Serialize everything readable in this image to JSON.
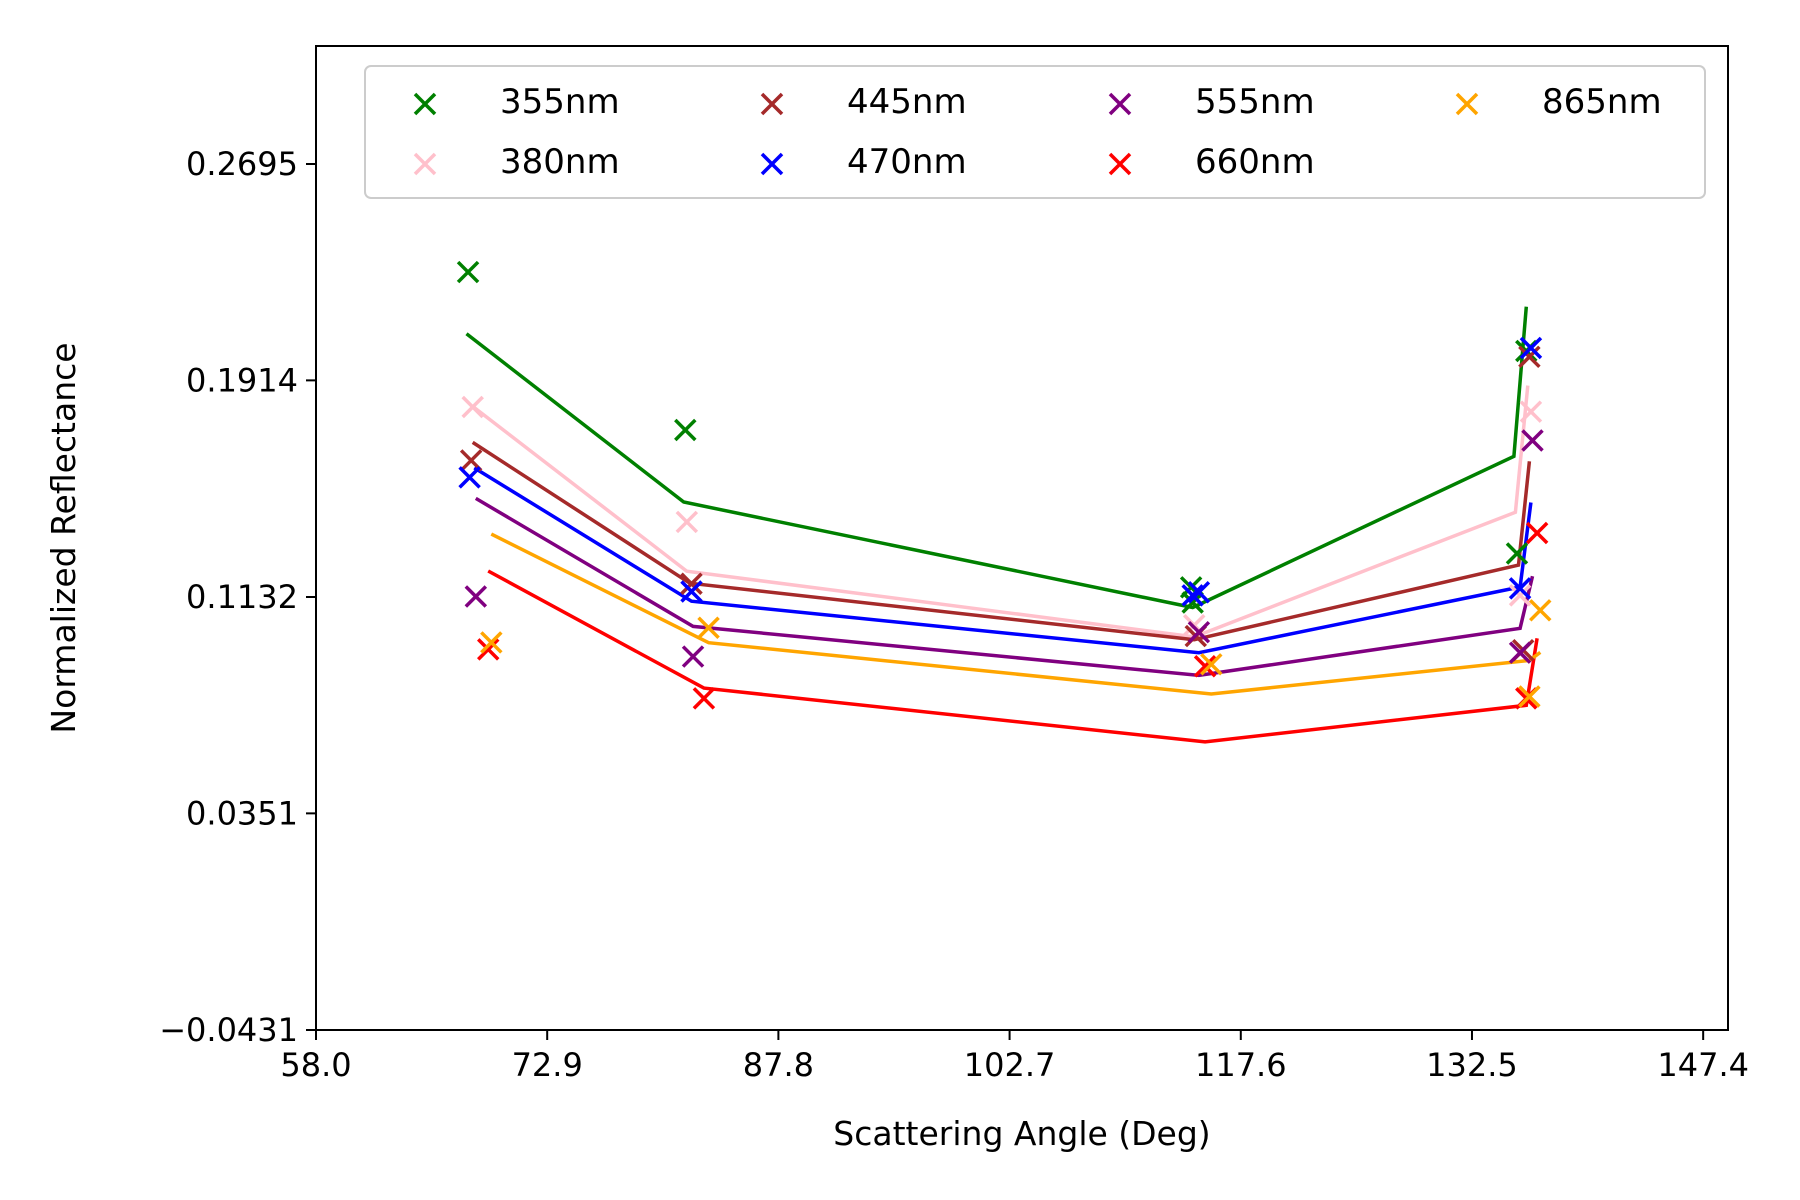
{
  "chart_data": {
    "type": "scatter",
    "title": "",
    "xlabel": "Scattering Angle (Deg)",
    "ylabel": "Normalized Reflectance",
    "xlim": [
      58.0,
      149.0
    ],
    "ylim": [
      -0.0431,
      0.3121
    ],
    "x_ticks": [
      "58.0",
      "72.9",
      "87.8",
      "102.7",
      "117.6",
      "132.5",
      "147.4"
    ],
    "y_ticks": [
      "−0.0431",
      "0.0351",
      "0.1132",
      "0.1914",
      "0.2695"
    ],
    "grid": false,
    "legend_position": "top",
    "series": [
      {
        "name": "355nm",
        "color": "#008000",
        "points": [
          [
            67.8,
            0.2305
          ],
          [
            81.8,
            0.1735
          ],
          [
            114.4,
            0.1167
          ],
          [
            114.5,
            0.1112
          ],
          [
            135.4,
            0.1289
          ],
          [
            136.0,
            0.202
          ]
        ],
        "line": [
          [
            67.7,
            0.2082
          ],
          [
            81.7,
            0.1475
          ],
          [
            114.5,
            0.1094
          ],
          [
            135.2,
            0.164
          ],
          [
            136.0,
            0.218
          ]
        ]
      },
      {
        "name": "380nm",
        "color": "#ffc0cb",
        "points": [
          [
            68.1,
            0.1818
          ],
          [
            81.9,
            0.1403
          ],
          [
            114.6,
            0.103
          ],
          [
            135.6,
            0.1138
          ],
          [
            136.3,
            0.1801
          ]
        ],
        "line": [
          [
            68.1,
            0.182
          ],
          [
            81.9,
            0.1225
          ],
          [
            114.6,
            0.0988
          ],
          [
            135.3,
            0.1438
          ],
          [
            136.1,
            0.1895
          ]
        ]
      },
      {
        "name": "445nm",
        "color": "#a52a2a",
        "points": [
          [
            68.0,
            0.1625
          ],
          [
            82.2,
            0.118
          ],
          [
            114.7,
            0.0991
          ],
          [
            136.2,
            0.1999
          ],
          [
            135.8,
            0.094
          ]
        ],
        "line": [
          [
            68.1,
            0.169
          ],
          [
            82.1,
            0.1182
          ],
          [
            114.6,
            0.0978
          ],
          [
            135.5,
            0.1247
          ],
          [
            136.2,
            0.1622
          ]
        ]
      },
      {
        "name": "470nm",
        "color": "#0000ff",
        "points": [
          [
            67.9,
            0.1564
          ],
          [
            82.2,
            0.1152
          ],
          [
            114.5,
            0.1138
          ],
          [
            114.9,
            0.1149
          ],
          [
            135.6,
            0.1163
          ],
          [
            136.3,
            0.2031
          ]
        ],
        "line": [
          [
            68.2,
            0.1598
          ],
          [
            82.2,
            0.1117
          ],
          [
            114.9,
            0.0931
          ],
          [
            135.6,
            0.1168
          ],
          [
            136.3,
            0.1473
          ]
        ]
      },
      {
        "name": "555nm",
        "color": "#800080",
        "points": [
          [
            68.3,
            0.1134
          ],
          [
            82.3,
            0.0917
          ],
          [
            114.9,
            0.1005
          ],
          [
            135.6,
            0.0931
          ],
          [
            136.4,
            0.1697
          ]
        ],
        "line": [
          [
            68.3,
            0.1488
          ],
          [
            82.3,
            0.1026
          ],
          [
            114.9,
            0.0849
          ],
          [
            135.6,
            0.1019
          ],
          [
            136.4,
            0.1207
          ]
        ]
      },
      {
        "name": "660nm",
        "color": "#ff0000",
        "points": [
          [
            69.1,
            0.0943
          ],
          [
            83.0,
            0.0766
          ],
          [
            115.3,
            0.0882
          ],
          [
            136.0,
            0.0766
          ],
          [
            136.7,
            0.1363
          ]
        ],
        "line": [
          [
            69.1,
            0.1226
          ],
          [
            83.0,
            0.0803
          ],
          [
            115.3,
            0.0609
          ],
          [
            136.0,
            0.0741
          ],
          [
            136.7,
            0.0983
          ]
        ]
      },
      {
        "name": "865nm",
        "color": "#ffa500",
        "points": [
          [
            69.3,
            0.0968
          ],
          [
            83.3,
            0.1021
          ],
          [
            115.7,
            0.0889
          ],
          [
            136.2,
            0.0773
          ],
          [
            136.9,
            0.1084
          ]
        ],
        "line": [
          [
            69.3,
            0.1359
          ],
          [
            83.3,
            0.0967
          ],
          [
            115.7,
            0.0782
          ],
          [
            136.2,
            0.0903
          ],
          [
            136.9,
            0.0932
          ]
        ]
      }
    ]
  }
}
